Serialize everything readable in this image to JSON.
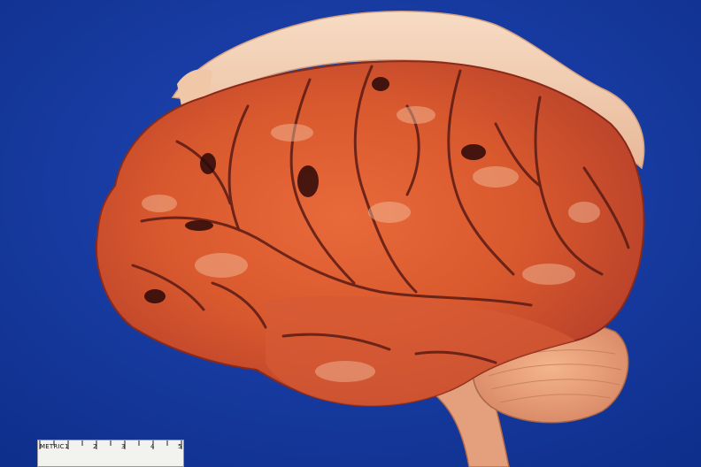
{
  "scene": {
    "subject": "brain-specimen",
    "background_color": "#1a3fa8"
  },
  "ruler": {
    "label": "METRIC",
    "numbers": [
      "1",
      "2",
      "3",
      "4",
      "5"
    ]
  }
}
